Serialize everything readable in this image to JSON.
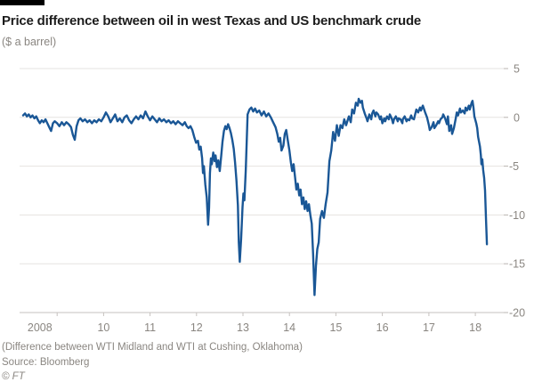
{
  "colors": {
    "line": "#1a5796",
    "grid": "#e6e3e0",
    "axis": "#c6c2bf",
    "tick": "#b9b4b0",
    "label": "#8a8681",
    "title": "#1c1c1c",
    "topbar": "#000000",
    "background": "#ffffff"
  },
  "chart_data": {
    "type": "line",
    "title": "Price difference between oil in west Texas and US benchmark crude",
    "subtitle": "($ a barrel)",
    "note": "(Difference between WTI Midland and WTI at Cushing, Oklahoma)",
    "source": "Source: Bloomberg",
    "copyright": "© FT",
    "xlim": [
      2008.25,
      2018.65
    ],
    "ylim": [
      -20,
      5
    ],
    "grid": true,
    "legend": "none",
    "y_ticks": [
      5,
      0,
      -5,
      -10,
      -15,
      -20
    ],
    "x_tick_marks": [
      2009,
      2010,
      2011,
      2012,
      2013,
      2014,
      2015,
      2016,
      2017,
      2018
    ],
    "x_labels": [
      {
        "pos": 2008.63,
        "label": "2008"
      },
      {
        "pos": 2010,
        "label": "10"
      },
      {
        "pos": 2011,
        "label": "11"
      },
      {
        "pos": 2012,
        "label": "12"
      },
      {
        "pos": 2013,
        "label": "13"
      },
      {
        "pos": 2014,
        "label": "14"
      },
      {
        "pos": 2015,
        "label": "15"
      },
      {
        "pos": 2016,
        "label": "16"
      },
      {
        "pos": 2017,
        "label": "17"
      },
      {
        "pos": 2018,
        "label": "18"
      }
    ],
    "series": [
      {
        "name": "WTI Midland minus WTI Cushing ($ a barrel)",
        "points": [
          [
            2008.27,
            0.2
          ],
          [
            2008.31,
            0.4
          ],
          [
            2008.35,
            0.1
          ],
          [
            2008.39,
            0.3
          ],
          [
            2008.43,
            0.0
          ],
          [
            2008.47,
            0.2
          ],
          [
            2008.51,
            -0.1
          ],
          [
            2008.55,
            0.1
          ],
          [
            2008.59,
            -0.3
          ],
          [
            2008.63,
            -0.6
          ],
          [
            2008.67,
            -0.3
          ],
          [
            2008.71,
            -0.5
          ],
          [
            2008.75,
            -0.2
          ],
          [
            2008.79,
            -0.6
          ],
          [
            2008.83,
            -1.0
          ],
          [
            2008.87,
            -1.4
          ],
          [
            2008.91,
            -0.6
          ],
          [
            2008.95,
            -0.4
          ],
          [
            2009.0,
            -0.6
          ],
          [
            2009.05,
            -0.9
          ],
          [
            2009.1,
            -0.5
          ],
          [
            2009.15,
            -0.8
          ],
          [
            2009.2,
            -0.5
          ],
          [
            2009.25,
            -0.7
          ],
          [
            2009.3,
            -1.0
          ],
          [
            2009.34,
            -1.8
          ],
          [
            2009.38,
            -2.3
          ],
          [
            2009.42,
            -0.9
          ],
          [
            2009.46,
            -0.3
          ],
          [
            2009.5,
            -0.1
          ],
          [
            2009.55,
            -0.4
          ],
          [
            2009.6,
            -0.2
          ],
          [
            2009.65,
            -0.5
          ],
          [
            2009.7,
            -0.3
          ],
          [
            2009.75,
            -0.6
          ],
          [
            2009.8,
            -0.3
          ],
          [
            2009.85,
            -0.5
          ],
          [
            2009.9,
            -0.2
          ],
          [
            2009.95,
            -0.4
          ],
          [
            2010.0,
            0.0
          ],
          [
            2010.05,
            0.5
          ],
          [
            2010.1,
            0.1
          ],
          [
            2010.15,
            -0.5
          ],
          [
            2010.2,
            -0.1
          ],
          [
            2010.25,
            0.3
          ],
          [
            2010.3,
            -0.4
          ],
          [
            2010.35,
            -0.1
          ],
          [
            2010.4,
            -0.5
          ],
          [
            2010.45,
            0.0
          ],
          [
            2010.5,
            0.2
          ],
          [
            2010.55,
            -0.3
          ],
          [
            2010.6,
            -0.6
          ],
          [
            2010.65,
            -0.2
          ],
          [
            2010.7,
            0.1
          ],
          [
            2010.75,
            -0.2
          ],
          [
            2010.8,
            0.2
          ],
          [
            2010.85,
            -0.1
          ],
          [
            2010.9,
            0.6
          ],
          [
            2010.95,
            0.1
          ],
          [
            2011.0,
            -0.3
          ],
          [
            2011.05,
            0.1
          ],
          [
            2011.1,
            -0.2
          ],
          [
            2011.15,
            -0.5
          ],
          [
            2011.2,
            -0.1
          ],
          [
            2011.25,
            -0.4
          ],
          [
            2011.3,
            -0.2
          ],
          [
            2011.35,
            -0.5
          ],
          [
            2011.4,
            -0.3
          ],
          [
            2011.45,
            -0.6
          ],
          [
            2011.5,
            -0.4
          ],
          [
            2011.55,
            -0.7
          ],
          [
            2011.6,
            -0.4
          ],
          [
            2011.65,
            -0.6
          ],
          [
            2011.7,
            -0.8
          ],
          [
            2011.75,
            -0.5
          ],
          [
            2011.79,
            -0.9
          ],
          [
            2011.83,
            -1.1
          ],
          [
            2011.87,
            -0.9
          ],
          [
            2011.91,
            -1.3
          ],
          [
            2011.95,
            -2.0
          ],
          [
            2011.99,
            -2.6
          ],
          [
            2012.03,
            -2.4
          ],
          [
            2012.06,
            -3.3
          ],
          [
            2012.09,
            -3.0
          ],
          [
            2012.12,
            -4.2
          ],
          [
            2012.14,
            -5.7
          ],
          [
            2012.16,
            -5.0
          ],
          [
            2012.19,
            -6.9
          ],
          [
            2012.22,
            -8.2
          ],
          [
            2012.25,
            -11.0
          ],
          [
            2012.27,
            -9.3
          ],
          [
            2012.29,
            -5.7
          ],
          [
            2012.31,
            -4.2
          ],
          [
            2012.33,
            -4.8
          ],
          [
            2012.36,
            -3.6
          ],
          [
            2012.39,
            -4.5
          ],
          [
            2012.41,
            -3.9
          ],
          [
            2012.44,
            -5.1
          ],
          [
            2012.47,
            -4.4
          ],
          [
            2012.5,
            -5.5
          ],
          [
            2012.53,
            -4.0
          ],
          [
            2012.56,
            -2.5
          ],
          [
            2012.59,
            -1.4
          ],
          [
            2012.62,
            -0.9
          ],
          [
            2012.65,
            -1.2
          ],
          [
            2012.68,
            -0.7
          ],
          [
            2012.71,
            -1.1
          ],
          [
            2012.74,
            -1.6
          ],
          [
            2012.77,
            -2.3
          ],
          [
            2012.8,
            -3.2
          ],
          [
            2012.83,
            -4.6
          ],
          [
            2012.86,
            -6.5
          ],
          [
            2012.89,
            -9.0
          ],
          [
            2012.91,
            -12.8
          ],
          [
            2012.93,
            -14.8
          ],
          [
            2012.96,
            -12.5
          ],
          [
            2012.99,
            -9.2
          ],
          [
            2013.01,
            -7.8
          ],
          [
            2013.03,
            -8.5
          ],
          [
            2013.06,
            -5.5
          ],
          [
            2013.08,
            -2.5
          ],
          [
            2013.1,
            0.3
          ],
          [
            2013.14,
            0.8
          ],
          [
            2013.18,
            1.0
          ],
          [
            2013.22,
            0.6
          ],
          [
            2013.26,
            0.9
          ],
          [
            2013.3,
            0.5
          ],
          [
            2013.35,
            0.7
          ],
          [
            2013.4,
            0.2
          ],
          [
            2013.45,
            0.6
          ],
          [
            2013.5,
            0.1
          ],
          [
            2013.55,
            0.4
          ],
          [
            2013.6,
            0.0
          ],
          [
            2013.65,
            -0.5
          ],
          [
            2013.7,
            -1.0
          ],
          [
            2013.74,
            -1.7
          ],
          [
            2013.77,
            -2.5
          ],
          [
            2013.8,
            -2.1
          ],
          [
            2013.83,
            -3.4
          ],
          [
            2013.87,
            -2.9
          ],
          [
            2013.9,
            -1.7
          ],
          [
            2013.93,
            -1.3
          ],
          [
            2013.96,
            -2.2
          ],
          [
            2014.0,
            -3.4
          ],
          [
            2014.03,
            -4.6
          ],
          [
            2014.06,
            -5.5
          ],
          [
            2014.09,
            -4.8
          ],
          [
            2014.12,
            -6.1
          ],
          [
            2014.15,
            -7.4
          ],
          [
            2014.18,
            -6.8
          ],
          [
            2014.21,
            -8.0
          ],
          [
            2014.24,
            -7.4
          ],
          [
            2014.27,
            -8.9
          ],
          [
            2014.3,
            -8.2
          ],
          [
            2014.33,
            -9.4
          ],
          [
            2014.36,
            -8.6
          ],
          [
            2014.39,
            -9.6
          ],
          [
            2014.42,
            -8.9
          ],
          [
            2014.45,
            -10.0
          ],
          [
            2014.48,
            -10.9
          ],
          [
            2014.51,
            -14.0
          ],
          [
            2014.54,
            -18.2
          ],
          [
            2014.57,
            -15.2
          ],
          [
            2014.6,
            -13.5
          ],
          [
            2014.63,
            -12.8
          ],
          [
            2014.66,
            -10.4
          ],
          [
            2014.7,
            -9.6
          ],
          [
            2014.74,
            -10.3
          ],
          [
            2014.78,
            -8.9
          ],
          [
            2014.82,
            -7.7
          ],
          [
            2014.86,
            -4.5
          ],
          [
            2014.9,
            -3.4
          ],
          [
            2014.94,
            -1.5
          ],
          [
            2014.98,
            -2.4
          ],
          [
            2015.02,
            -0.8
          ],
          [
            2015.06,
            -1.9
          ],
          [
            2015.1,
            -0.8
          ],
          [
            2015.14,
            -1.1
          ],
          [
            2015.18,
            -0.2
          ],
          [
            2015.22,
            -0.8
          ],
          [
            2015.28,
            0.1
          ],
          [
            2015.32,
            -0.5
          ],
          [
            2015.35,
            0.8
          ],
          [
            2015.39,
            0.4
          ],
          [
            2015.43,
            1.5
          ],
          [
            2015.47,
            1.2
          ],
          [
            2015.49,
            1.9
          ],
          [
            2015.53,
            1.5
          ],
          [
            2015.56,
            1.7
          ],
          [
            2015.58,
            1.0
          ],
          [
            2015.62,
            0.4
          ],
          [
            2015.66,
            -0.1
          ],
          [
            2015.68,
            -0.4
          ],
          [
            2015.72,
            0.3
          ],
          [
            2015.76,
            -0.2
          ],
          [
            2015.78,
            0.4
          ],
          [
            2015.81,
            0.7
          ],
          [
            2015.85,
            0.1
          ],
          [
            2015.87,
            0.5
          ],
          [
            2015.91,
            0.3
          ],
          [
            2015.95,
            -0.2
          ],
          [
            2015.97,
            0.1
          ],
          [
            2016.0,
            -0.6
          ],
          [
            2016.04,
            -0.1
          ],
          [
            2016.06,
            -0.4
          ],
          [
            2016.1,
            0.1
          ],
          [
            2016.14,
            -0.2
          ],
          [
            2016.16,
            0.3
          ],
          [
            2016.2,
            -0.1
          ],
          [
            2016.23,
            -0.6
          ],
          [
            2016.25,
            -0.2
          ],
          [
            2016.29,
            0.1
          ],
          [
            2016.33,
            -0.4
          ],
          [
            2016.35,
            -0.1
          ],
          [
            2016.39,
            -0.2
          ],
          [
            2016.43,
            -0.6
          ],
          [
            2016.44,
            -0.2
          ],
          [
            2016.48,
            0.1
          ],
          [
            2016.52,
            -0.4
          ],
          [
            2016.54,
            -0.2
          ],
          [
            2016.58,
            -0.3
          ],
          [
            2016.62,
            0.2
          ],
          [
            2016.64,
            -0.1
          ],
          [
            2016.68,
            -0.2
          ],
          [
            2016.71,
            0.4
          ],
          [
            2016.73,
            0.8
          ],
          [
            2016.77,
            0.5
          ],
          [
            2016.81,
            1.0
          ],
          [
            2016.83,
            0.7
          ],
          [
            2016.87,
            1.2
          ],
          [
            2016.9,
            0.8
          ],
          [
            2016.92,
            0.5
          ],
          [
            2016.96,
            0.0
          ],
          [
            2017.0,
            -0.8
          ],
          [
            2017.02,
            -1.3
          ],
          [
            2017.06,
            -1.0
          ],
          [
            2017.1,
            -0.5
          ],
          [
            2017.12,
            -1.1
          ],
          [
            2017.16,
            -0.8
          ],
          [
            2017.2,
            -0.4
          ],
          [
            2017.22,
            -0.6
          ],
          [
            2017.25,
            -0.2
          ],
          [
            2017.29,
            0.0
          ],
          [
            2017.31,
            0.3
          ],
          [
            2017.35,
            -0.1
          ],
          [
            2017.39,
            -0.7
          ],
          [
            2017.41,
            0.1
          ],
          [
            2017.44,
            -1.4
          ],
          [
            2017.48,
            -0.8
          ],
          [
            2017.5,
            -1.7
          ],
          [
            2017.54,
            -1.1
          ],
          [
            2017.58,
            -0.1
          ],
          [
            2017.6,
            0.5
          ],
          [
            2017.63,
            0.2
          ],
          [
            2017.67,
            0.9
          ],
          [
            2017.69,
            0.5
          ],
          [
            2017.73,
            0.7
          ],
          [
            2017.77,
            0.4
          ],
          [
            2017.79,
            1.0
          ],
          [
            2017.82,
            0.7
          ],
          [
            2017.86,
            1.2
          ],
          [
            2017.88,
            0.8
          ],
          [
            2017.92,
            1.5
          ],
          [
            2017.94,
            1.7
          ],
          [
            2017.96,
            1.0
          ],
          [
            2017.98,
            0.1
          ],
          [
            2018.02,
            -0.6
          ],
          [
            2018.04,
            -1.1
          ],
          [
            2018.06,
            -2.0
          ],
          [
            2018.1,
            -3.0
          ],
          [
            2018.12,
            -3.9
          ],
          [
            2018.13,
            -4.8
          ],
          [
            2018.15,
            -4.3
          ],
          [
            2018.17,
            -5.4
          ],
          [
            2018.19,
            -6.2
          ],
          [
            2018.21,
            -7.5
          ],
          [
            2018.23,
            -10.5
          ],
          [
            2018.25,
            -13.0
          ]
        ]
      }
    ]
  }
}
